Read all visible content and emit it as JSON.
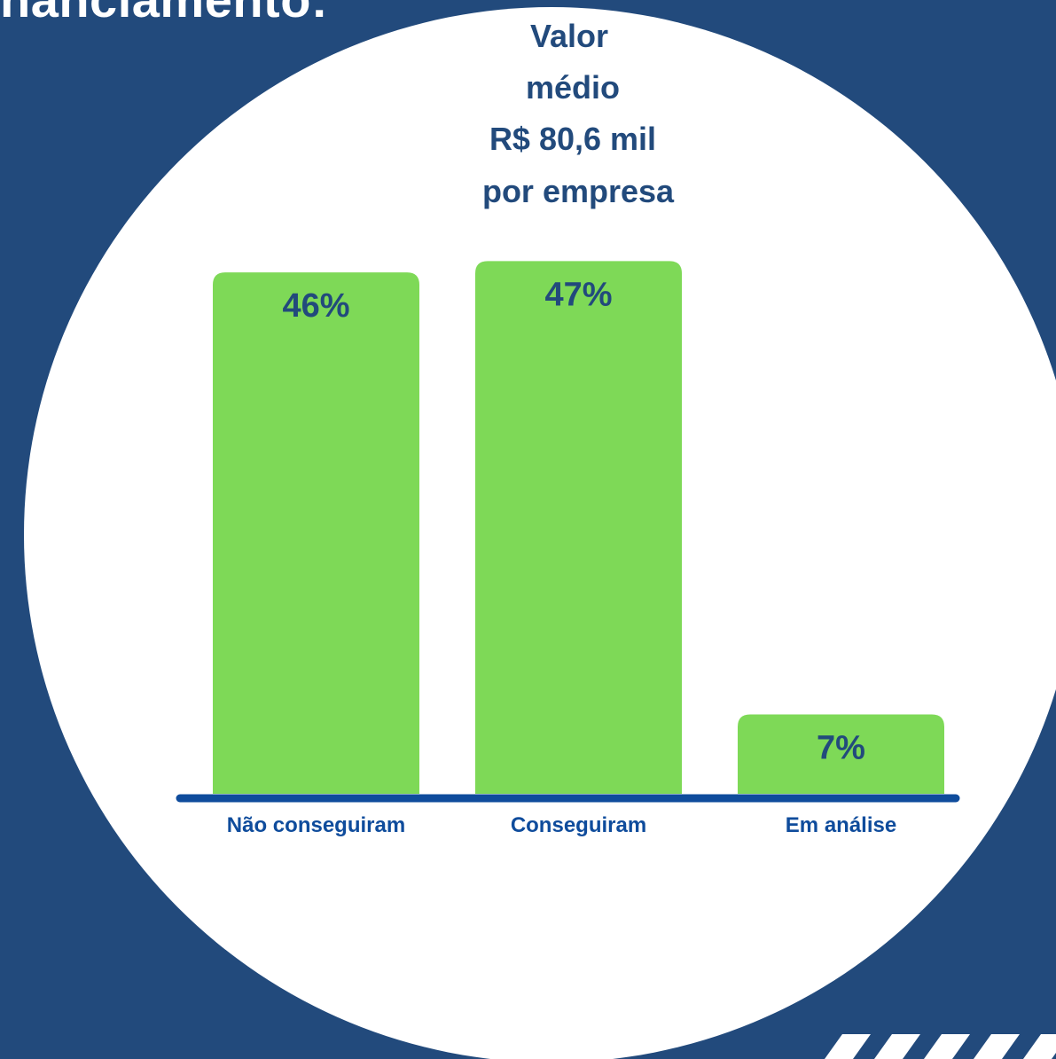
{
  "headline": "nanciamento:",
  "chart_data": {
    "type": "bar",
    "categories": [
      "Não conseguiram",
      "Conseguiram",
      "Em análise"
    ],
    "values": [
      46,
      47,
      7
    ],
    "value_labels": [
      "46%",
      "47%",
      "7%"
    ],
    "ylim": [
      0,
      50
    ],
    "annotation": [
      "Valor",
      "médio",
      "R$ 80,6 mil",
      "por empresa"
    ],
    "xlabel": "",
    "ylabel": "",
    "grid": false,
    "legend": "none"
  },
  "colors": {
    "background": "#224A7C",
    "circle": "#FFFFFF",
    "bar": "#7ED957",
    "text": "#224A7C",
    "axis": "#0F4C9C"
  }
}
